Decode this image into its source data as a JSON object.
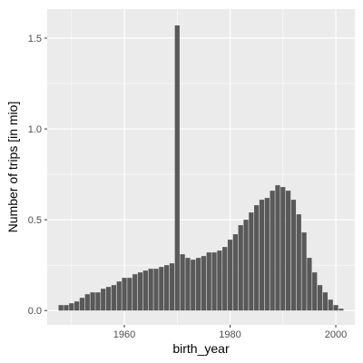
{
  "chart_data": {
    "type": "bar",
    "xlabel": "birth_year",
    "ylabel": "Number of trips [in mio]",
    "xlim": [
      1945.4,
      2003.6
    ],
    "ylim": [
      -0.079,
      1.66
    ],
    "x_ticks": [
      {
        "value": 1960,
        "label": "1960"
      },
      {
        "value": 1980,
        "label": "1980"
      },
      {
        "value": 2000,
        "label": "2000"
      }
    ],
    "y_ticks": [
      {
        "value": 0.0,
        "label": "0.0"
      },
      {
        "value": 0.5,
        "label": "0.5"
      },
      {
        "value": 1.0,
        "label": "1.0"
      },
      {
        "value": 1.5,
        "label": "1.5"
      }
    ],
    "grid": true,
    "bar_color": "#595959",
    "panel_background": "#ebebeb",
    "gridline_color": "#ffffff",
    "x": [
      1948,
      1949,
      1950,
      1951,
      1952,
      1953,
      1954,
      1955,
      1956,
      1957,
      1958,
      1959,
      1960,
      1961,
      1962,
      1963,
      1964,
      1965,
      1966,
      1967,
      1968,
      1969,
      1970,
      1971,
      1972,
      1973,
      1974,
      1975,
      1976,
      1977,
      1978,
      1979,
      1980,
      1981,
      1982,
      1983,
      1984,
      1985,
      1986,
      1987,
      1988,
      1989,
      1990,
      1991,
      1992,
      1993,
      1994,
      1995,
      1996,
      1997,
      1998,
      1999,
      2000,
      2001
    ],
    "values": [
      0.03,
      0.03,
      0.04,
      0.05,
      0.07,
      0.09,
      0.1,
      0.1,
      0.12,
      0.13,
      0.14,
      0.16,
      0.18,
      0.18,
      0.2,
      0.21,
      0.22,
      0.23,
      0.23,
      0.24,
      0.25,
      0.26,
      1.57,
      0.31,
      0.29,
      0.28,
      0.29,
      0.3,
      0.32,
      0.32,
      0.33,
      0.35,
      0.39,
      0.42,
      0.47,
      0.5,
      0.54,
      0.58,
      0.61,
      0.62,
      0.66,
      0.69,
      0.68,
      0.66,
      0.61,
      0.53,
      0.43,
      0.29,
      0.21,
      0.14,
      0.1,
      0.06,
      0.03,
      0.01
    ]
  }
}
